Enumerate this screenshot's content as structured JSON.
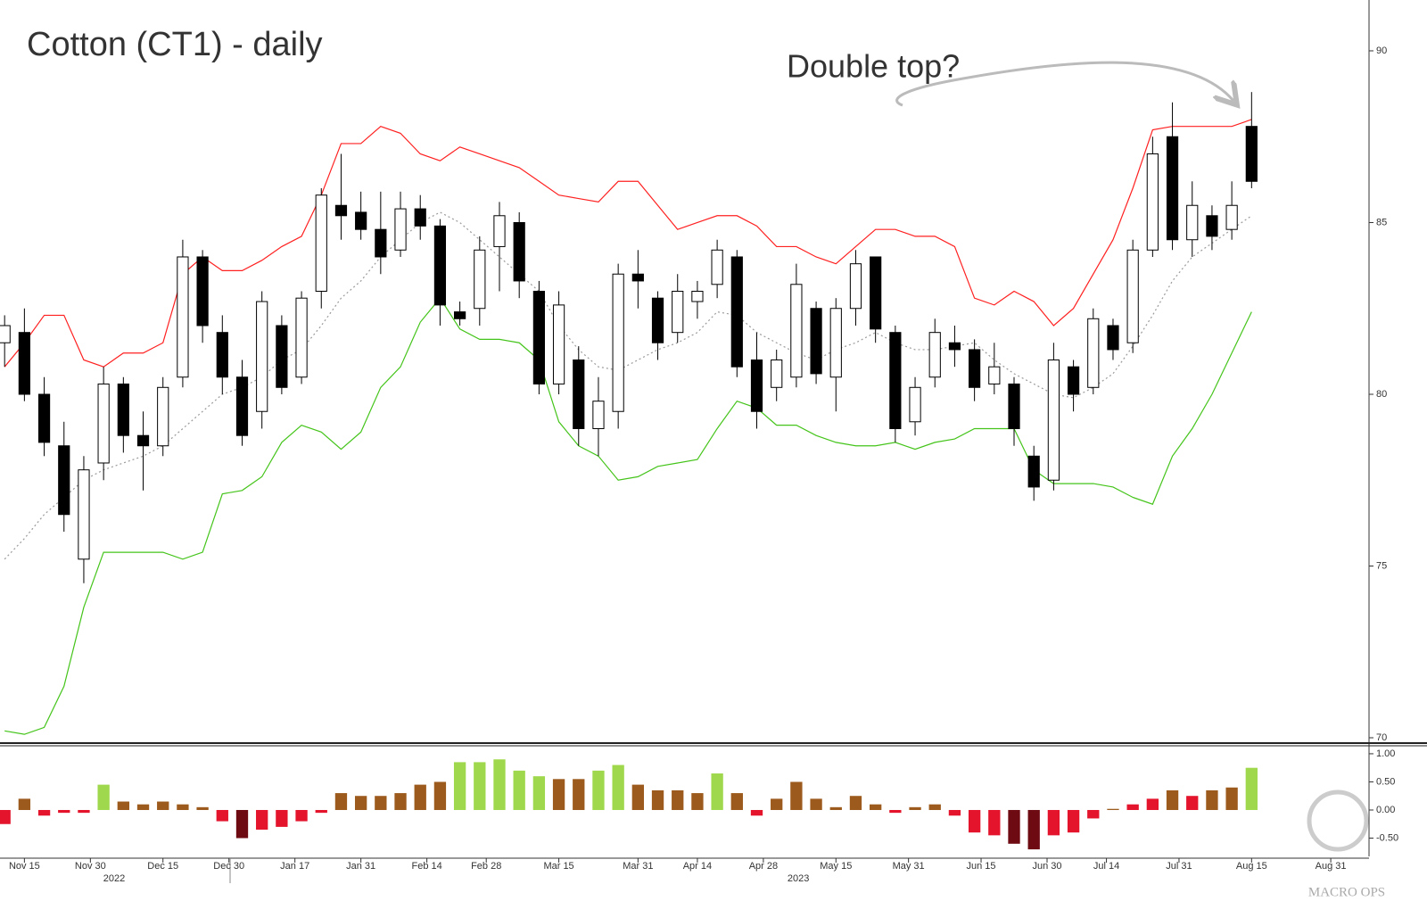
{
  "chart_data": [
    {
      "type": "candlestick",
      "title": "Cotton (CT1) - daily",
      "annotation": "Double top?",
      "watermark": "MACRO OPS",
      "x": [
        0,
        3,
        6,
        9,
        12,
        15,
        18,
        21,
        24,
        27,
        30,
        33,
        36,
        39,
        42,
        45,
        48,
        51,
        54,
        57,
        60,
        63,
        66,
        69,
        72,
        75,
        78,
        81,
        84,
        87,
        90,
        93,
        96,
        99,
        102,
        105,
        108,
        111,
        114,
        117,
        120,
        123,
        126,
        129,
        132,
        135,
        138,
        141,
        144,
        147,
        150,
        153,
        156,
        159,
        162,
        165,
        168,
        171,
        174,
        177,
        180,
        183,
        186,
        189
      ],
      "open": [
        81.5,
        81.8,
        80.0,
        78.5,
        75.2,
        78.0,
        80.3,
        78.8,
        78.5,
        80.5,
        84.0,
        81.8,
        80.5,
        79.5,
        82.0,
        80.5,
        83.0,
        85.5,
        85.3,
        84.8,
        84.2,
        85.4,
        84.9,
        82.4,
        82.5,
        84.3,
        85.0,
        83.0,
        80.3,
        81.0,
        79.0,
        79.5,
        83.5,
        82.8,
        81.8,
        82.7,
        83.2,
        84.0,
        81.0,
        80.2,
        80.5,
        82.5,
        80.5,
        82.5,
        84.0,
        81.8,
        79.2,
        80.5,
        81.5,
        81.3,
        80.3,
        80.3,
        78.2,
        77.5,
        80.8,
        80.2,
        82.0,
        81.5,
        84.2,
        87.5,
        84.5,
        85.2,
        84.8,
        87.8
      ],
      "high": [
        82.3,
        82.5,
        80.5,
        79.2,
        78.2,
        80.8,
        80.5,
        79.5,
        80.5,
        84.5,
        84.2,
        82.3,
        81.0,
        83.0,
        82.3,
        83.0,
        86.0,
        87.0,
        85.9,
        85.9,
        85.9,
        85.8,
        85.1,
        82.7,
        84.6,
        85.6,
        85.3,
        83.3,
        83.0,
        81.4,
        80.5,
        83.8,
        84.2,
        83.0,
        83.5,
        83.3,
        84.5,
        84.2,
        81.8,
        81.3,
        83.8,
        82.7,
        82.8,
        84.2,
        84.0,
        82.0,
        80.5,
        82.2,
        82.0,
        81.6,
        81.5,
        80.5,
        78.5,
        81.5,
        81.0,
        82.5,
        82.2,
        84.5,
        87.5,
        88.5,
        86.2,
        85.5,
        86.2,
        88.8
      ],
      "low": [
        80.8,
        79.8,
        78.2,
        76.0,
        74.5,
        77.5,
        78.3,
        77.2,
        78.2,
        80.2,
        81.5,
        80.0,
        78.5,
        79.0,
        80.0,
        80.3,
        82.5,
        84.5,
        84.5,
        83.5,
        84.0,
        84.5,
        82.0,
        82.0,
        82.0,
        83.0,
        82.8,
        80.0,
        80.0,
        78.5,
        78.2,
        79.0,
        82.5,
        81.0,
        81.5,
        82.2,
        82.8,
        80.5,
        79.0,
        79.8,
        80.2,
        80.3,
        79.5,
        82.0,
        81.5,
        78.6,
        78.8,
        80.2,
        80.8,
        79.8,
        80.0,
        78.5,
        76.9,
        77.2,
        79.5,
        80.0,
        81.0,
        81.2,
        84.0,
        84.2,
        84.0,
        84.2,
        84.5,
        86.0
      ],
      "close": [
        82.0,
        80.0,
        78.6,
        76.5,
        77.8,
        80.3,
        78.8,
        78.5,
        80.2,
        84.0,
        82.0,
        80.5,
        78.8,
        82.7,
        80.2,
        82.8,
        85.8,
        85.2,
        84.8,
        84.0,
        85.4,
        84.9,
        82.6,
        82.2,
        84.2,
        85.2,
        83.3,
        80.3,
        82.6,
        79.0,
        79.8,
        83.5,
        83.3,
        81.5,
        83.0,
        83.0,
        84.2,
        80.8,
        79.5,
        81.0,
        83.2,
        80.6,
        82.5,
        83.8,
        81.9,
        79.0,
        80.2,
        81.8,
        81.3,
        80.2,
        80.8,
        79.0,
        77.3,
        81.0,
        80.0,
        82.2,
        81.3,
        84.2,
        87.0,
        84.5,
        85.5,
        84.6,
        85.5,
        86.2
      ],
      "up_color": "#ffffff",
      "down_color": "#000000",
      "series": [
        {
          "color": "#ff2020",
          "style": "solid",
          "values": [
            80.8,
            81.5,
            82.3,
            82.3,
            81.0,
            80.8,
            81.2,
            81.2,
            81.5,
            83.5,
            84.0,
            83.6,
            83.6,
            83.9,
            84.3,
            84.6,
            85.8,
            87.3,
            87.3,
            87.8,
            87.6,
            87.0,
            86.8,
            87.2,
            87.0,
            86.8,
            86.6,
            86.2,
            85.8,
            85.7,
            85.6,
            86.2,
            86.2,
            85.5,
            84.8,
            85.0,
            85.2,
            85.2,
            84.9,
            84.3,
            84.3,
            84.0,
            83.8,
            84.3,
            84.8,
            84.8,
            84.6,
            84.6,
            84.3,
            82.8,
            82.6,
            83.0,
            82.7,
            82.0,
            82.5,
            83.5,
            84.5,
            86.0,
            87.7,
            87.8,
            87.8,
            87.8,
            87.8,
            88.0
          ]
        },
        {
          "color": "#44c41a",
          "style": "solid",
          "values": [
            70.2,
            70.1,
            70.3,
            71.5,
            73.8,
            75.4,
            75.4,
            75.4,
            75.4,
            75.2,
            75.4,
            77.1,
            77.2,
            77.6,
            78.6,
            79.1,
            78.9,
            78.4,
            78.9,
            80.2,
            80.8,
            82.1,
            82.8,
            81.9,
            81.6,
            81.6,
            81.5,
            81.0,
            79.2,
            78.5,
            78.2,
            77.5,
            77.6,
            77.9,
            78.0,
            78.1,
            79.0,
            79.8,
            79.6,
            79.1,
            79.1,
            78.8,
            78.6,
            78.5,
            78.5,
            78.6,
            78.4,
            78.6,
            78.7,
            79.0,
            79.0,
            79.0,
            77.8,
            77.4,
            77.4,
            77.4,
            77.3,
            77.0,
            76.8,
            78.2,
            79.0,
            80.0,
            81.2,
            82.4
          ]
        },
        {
          "color": "#9a9a9a",
          "style": "dotted",
          "values": [
            75.2,
            75.8,
            76.5,
            77.0,
            77.5,
            77.8,
            78.0,
            78.2,
            78.5,
            79.0,
            79.5,
            80.0,
            80.2,
            80.5,
            81.0,
            81.3,
            82.0,
            82.8,
            83.3,
            84.0,
            84.5,
            85.0,
            85.3,
            85.0,
            84.5,
            84.0,
            83.5,
            83.0,
            82.0,
            81.3,
            80.8,
            80.7,
            81.0,
            81.3,
            81.5,
            81.8,
            82.4,
            82.3,
            81.8,
            81.5,
            81.2,
            81.0,
            81.3,
            81.5,
            81.8,
            81.5,
            81.3,
            81.3,
            81.4,
            81.5,
            81.0,
            80.6,
            80.3,
            80.0,
            79.9,
            80.2,
            80.6,
            81.4,
            82.3,
            83.3,
            84.0,
            84.4,
            84.8,
            85.2
          ]
        }
      ],
      "xlim": [
        -0.7,
        206.8
      ],
      "ylim": [
        69.87,
        91.48
      ],
      "yticks": [
        70,
        75,
        80,
        85,
        90
      ]
    },
    {
      "type": "bar",
      "x": [
        0,
        3,
        6,
        9,
        12,
        15,
        18,
        21,
        24,
        27,
        30,
        33,
        36,
        39,
        42,
        45,
        48,
        51,
        54,
        57,
        60,
        63,
        66,
        69,
        72,
        75,
        78,
        81,
        84,
        87,
        90,
        93,
        96,
        99,
        102,
        105,
        108,
        111,
        114,
        117,
        120,
        123,
        126,
        129,
        132,
        135,
        138,
        141,
        144,
        147,
        150,
        153,
        156,
        159,
        162,
        165,
        168,
        171,
        174,
        177,
        180,
        183,
        186,
        189
      ],
      "values": [
        -0.25,
        0.2,
        -0.1,
        -0.05,
        -0.05,
        0.45,
        0.15,
        0.1,
        0.15,
        0.1,
        0.05,
        -0.2,
        -0.5,
        -0.35,
        -0.3,
        -0.2,
        -0.05,
        0.3,
        0.25,
        0.25,
        0.3,
        0.45,
        0.5,
        0.85,
        0.85,
        0.9,
        0.7,
        0.6,
        0.55,
        0.55,
        0.7,
        0.8,
        0.45,
        0.35,
        0.35,
        0.3,
        0.65,
        0.3,
        -0.1,
        0.2,
        0.5,
        0.2,
        0.05,
        0.25,
        0.1,
        -0.05,
        0.05,
        0.1,
        -0.1,
        -0.4,
        -0.45,
        -0.6,
        -0.7,
        -0.45,
        -0.4,
        -0.15,
        0.02,
        0.1,
        0.2,
        0.35,
        0.25,
        0.35,
        0.4,
        0.75
      ],
      "colors": [
        "#e3142c",
        "#9c5a1c",
        "#e3142c",
        "#e3142c",
        "#e3142c",
        "#9fd84c",
        "#9c5a1c",
        "#9c5a1c",
        "#9c5a1c",
        "#9c5a1c",
        "#9c5a1c",
        "#e3142c",
        "#6e0a12",
        "#e3142c",
        "#e3142c",
        "#e3142c",
        "#e3142c",
        "#9c5a1c",
        "#9c5a1c",
        "#9c5a1c",
        "#9c5a1c",
        "#9c5a1c",
        "#9c5a1c",
        "#9fd84c",
        "#9fd84c",
        "#9fd84c",
        "#9fd84c",
        "#9fd84c",
        "#9c5a1c",
        "#9c5a1c",
        "#9fd84c",
        "#9fd84c",
        "#9c5a1c",
        "#9c5a1c",
        "#9c5a1c",
        "#9c5a1c",
        "#9fd84c",
        "#9c5a1c",
        "#e3142c",
        "#9c5a1c",
        "#9c5a1c",
        "#9c5a1c",
        "#9c5a1c",
        "#9c5a1c",
        "#9c5a1c",
        "#e3142c",
        "#9c5a1c",
        "#9c5a1c",
        "#e3142c",
        "#e3142c",
        "#e3142c",
        "#6e0a12",
        "#6e0a12",
        "#e3142c",
        "#e3142c",
        "#e3142c",
        "#9c5a1c",
        "#e3142c",
        "#e3142c",
        "#9c5a1c",
        "#e3142c",
        "#9c5a1c",
        "#9c5a1c",
        "#9fd84c"
      ],
      "xlim": [
        -0.7,
        206.8
      ],
      "ylim": [
        -0.825,
        1.11
      ],
      "yticks": [
        {
          "value": 1,
          "label": "1.00"
        },
        {
          "value": 0.5,
          "label": "0.50"
        },
        {
          "value": 0,
          "label": "0.00"
        },
        {
          "value": -0.5,
          "label": "-0.50"
        }
      ],
      "xticks": [
        {
          "value": 3,
          "label": "Nov 15"
        },
        {
          "value": 13,
          "label": "Nov 30"
        },
        {
          "value": 24,
          "label": "Dec 15"
        },
        {
          "value": 34,
          "label": "Dec 30"
        },
        {
          "value": 44,
          "label": "Jan 17"
        },
        {
          "value": 54,
          "label": "Jan 31"
        },
        {
          "value": 64,
          "label": "Feb 14"
        },
        {
          "value": 73,
          "label": "Feb 28"
        },
        {
          "value": 84,
          "label": "Mar 15"
        },
        {
          "value": 96,
          "label": "Mar 31"
        },
        {
          "value": 105,
          "label": "Apr 14"
        },
        {
          "value": 115,
          "label": "Apr 28"
        },
        {
          "value": 126,
          "label": "May 15"
        },
        {
          "value": 137,
          "label": "May 31"
        },
        {
          "value": 148,
          "label": "Jun 15"
        },
        {
          "value": 158,
          "label": "Jun 30"
        },
        {
          "value": 167,
          "label": "Jul 14"
        },
        {
          "value": 178,
          "label": "Jul 31"
        },
        {
          "value": 189,
          "label": "Aug 15"
        },
        {
          "value": 201,
          "label": "Aug 31"
        }
      ],
      "year_labels": [
        {
          "value": 16.6,
          "label": "2022"
        },
        {
          "value": 120.3,
          "label": "2023"
        }
      ]
    }
  ]
}
